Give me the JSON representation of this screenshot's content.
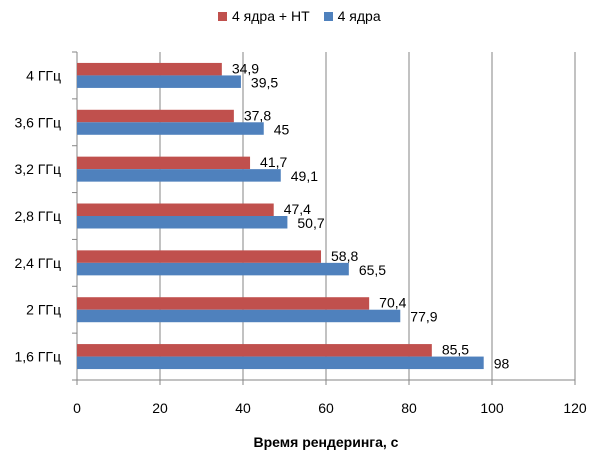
{
  "chart_data": {
    "type": "bar",
    "orientation": "horizontal",
    "categories": [
      "4 ГГц",
      "3,6 ГГц",
      "3,2 ГГц",
      "2,8 ГГц",
      "2,4 ГГц",
      "2 ГГц",
      "1,6 ГГц"
    ],
    "series": [
      {
        "name": "4 ядра + HT",
        "color": "#c0504d",
        "values": [
          34.9,
          37.8,
          41.7,
          47.4,
          58.8,
          70.4,
          85.5
        ],
        "labels": [
          "34,9",
          "37,8",
          "41,7",
          "47,4",
          "58,8",
          "70,4",
          "85,5"
        ]
      },
      {
        "name": "4 ядра",
        "color": "#4f81bd",
        "values": [
          39.5,
          45,
          49.1,
          50.7,
          65.5,
          77.9,
          98
        ],
        "labels": [
          "39,5",
          "45",
          "49,1",
          "50,7",
          "65,5",
          "77,9",
          "98"
        ]
      }
    ],
    "xlim": [
      0,
      120
    ],
    "xticks": [
      0,
      20,
      40,
      60,
      80,
      100,
      120
    ],
    "xlabel": "Время рендеринга, с",
    "ylabel": "",
    "title": "",
    "grid": "vertical",
    "legend_position": "top"
  }
}
